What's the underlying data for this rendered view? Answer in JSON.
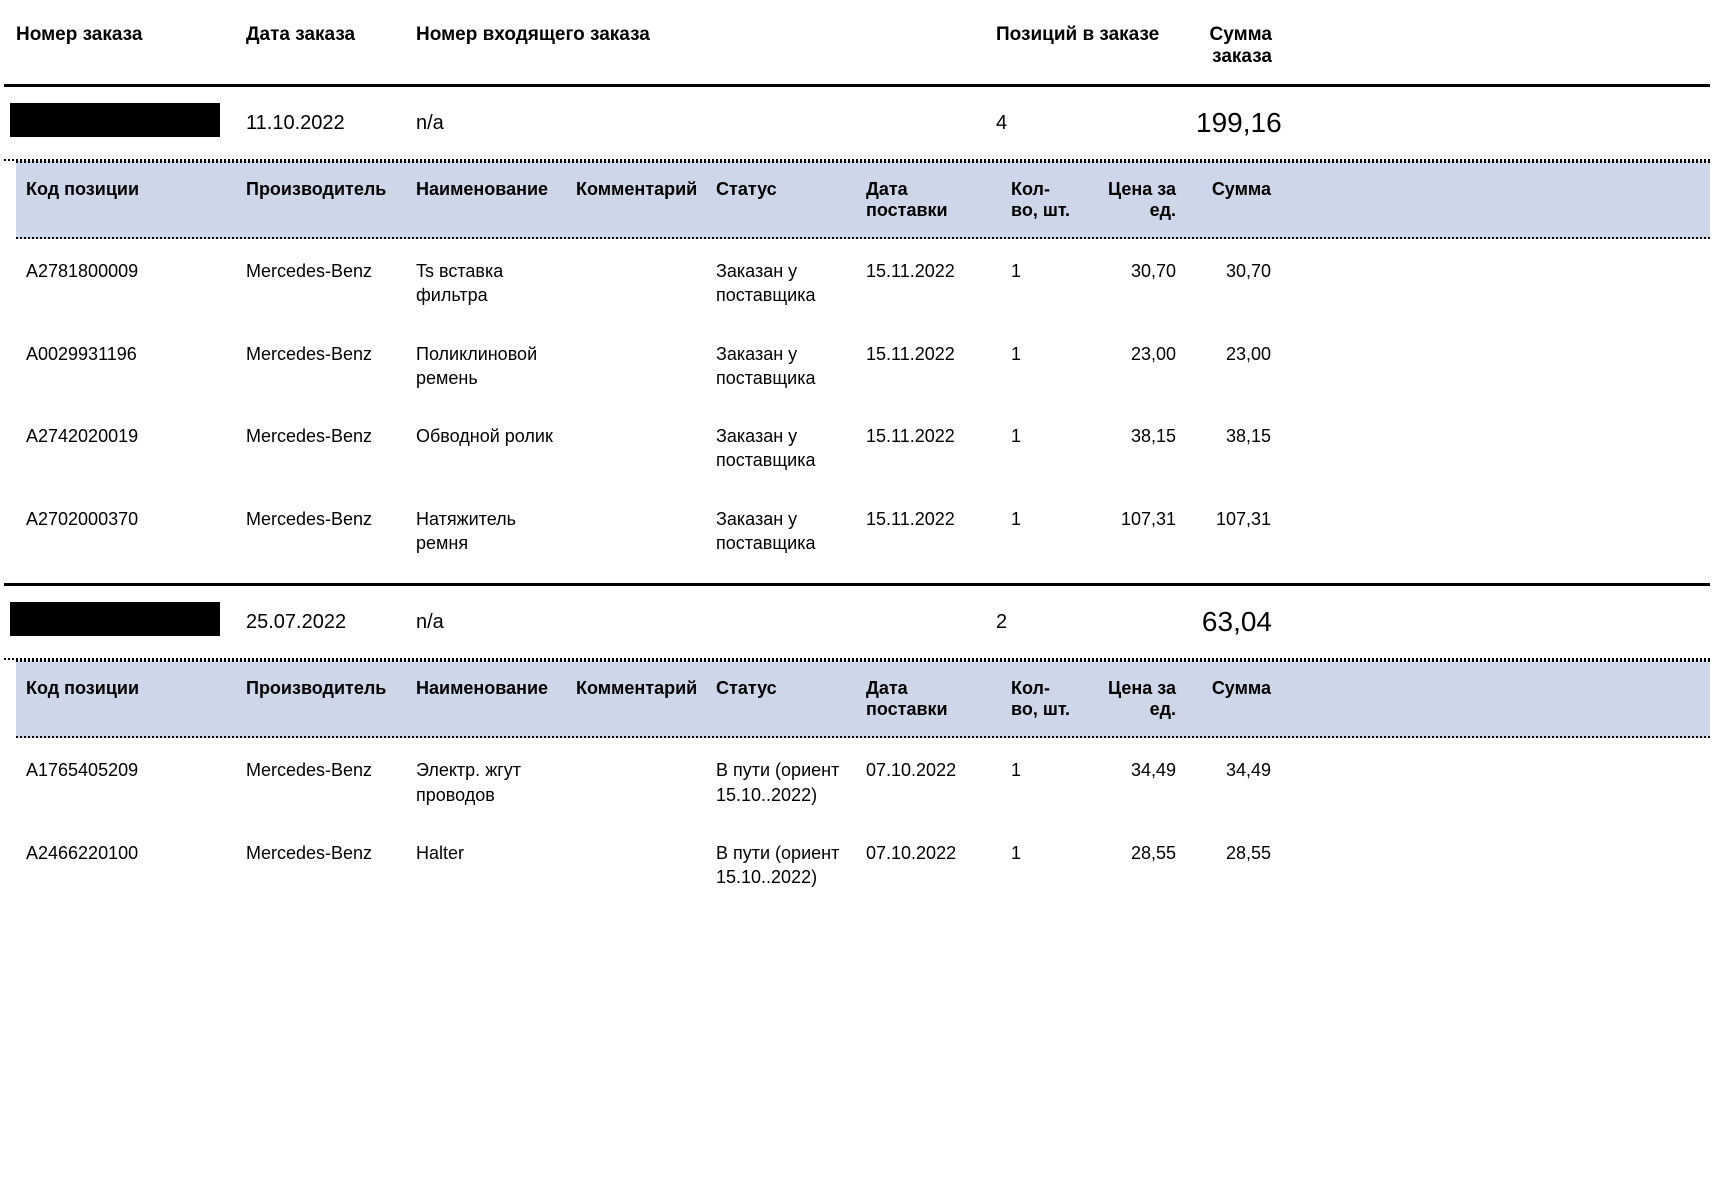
{
  "colors": {
    "detail_header_bg": "#ced6e9",
    "text": "#000000",
    "background": "#ffffff",
    "border_heavy": "#000000"
  },
  "master_headers": {
    "order_number": "Номер заказа",
    "order_date": "Дата заказа",
    "incoming_number": "Номер входящего заказа",
    "positions": "Позиций в заказе",
    "total": "Сумма заказа"
  },
  "detail_headers": {
    "code": "Код позиции",
    "manufacturer": "Производитель",
    "name": "Наименование",
    "comment": "Комментарий",
    "status": "Статус",
    "delivery_date": "Дата поставки",
    "qty": "Кол-во, шт.",
    "unit_price": "Цена за ед.",
    "sum": "Сумма"
  },
  "orders": [
    {
      "number_redacted": true,
      "date": "11.10.2022",
      "incoming": "n/a",
      "positions": "4",
      "total": "199,16",
      "items": [
        {
          "code": "A2781800009",
          "manufacturer": "Mercedes-Benz",
          "name": "Ts вставка фильтра",
          "comment": "",
          "status": "Заказан у поставщика",
          "delivery_date": "15.11.2022",
          "qty": "1",
          "price": "30,70",
          "sum": "30,70"
        },
        {
          "code": "A0029931196",
          "manufacturer": "Mercedes-Benz",
          "name": "Поликлиновой ремень",
          "comment": "",
          "status": "Заказан у поставщика",
          "delivery_date": "15.11.2022",
          "qty": "1",
          "price": "23,00",
          "sum": "23,00"
        },
        {
          "code": "A2742020019",
          "manufacturer": "Mercedes-Benz",
          "name": "Обводной ролик",
          "comment": "",
          "status": "Заказан у поставщика",
          "delivery_date": "15.11.2022",
          "qty": "1",
          "price": "38,15",
          "sum": "38,15"
        },
        {
          "code": "A2702000370",
          "manufacturer": "Mercedes-Benz",
          "name": "Натяжитель ремня",
          "comment": "",
          "status": "Заказан у поставщика",
          "delivery_date": "15.11.2022",
          "qty": "1",
          "price": "107,31",
          "sum": "107,31"
        }
      ]
    },
    {
      "number_redacted": true,
      "date": "25.07.2022",
      "incoming": "n/a",
      "positions": "2",
      "total": "63,04",
      "items": [
        {
          "code": "A1765405209",
          "manufacturer": "Mercedes-Benz",
          "name": "Электр. жгут проводов",
          "comment": "",
          "status": "В пути (ориент 15.10..2022)",
          "delivery_date": "07.10.2022",
          "qty": "1",
          "price": "34,49",
          "sum": "34,49"
        },
        {
          "code": "A2466220100",
          "manufacturer": "Mercedes-Benz",
          "name": "Halter",
          "comment": "",
          "status": "В пути (ориент 15.10..2022)",
          "delivery_date": "07.10.2022",
          "qty": "1",
          "price": "28,55",
          "sum": "28,55"
        }
      ]
    }
  ]
}
